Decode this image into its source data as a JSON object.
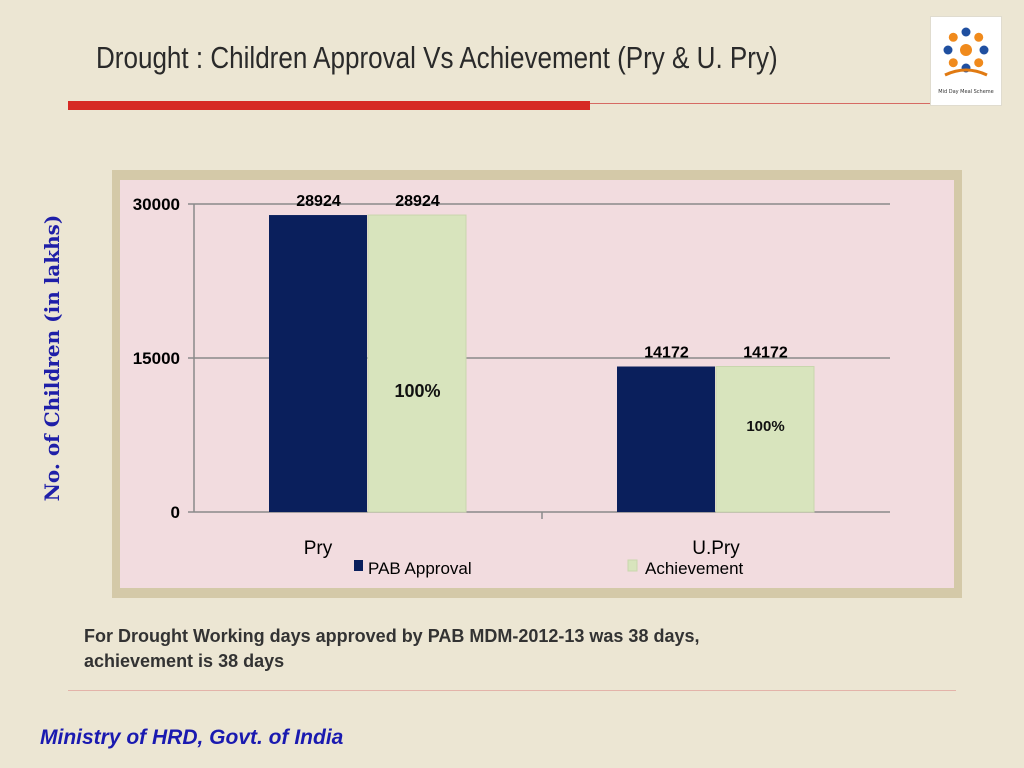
{
  "slide": {
    "title": "Drought  : Children Approval Vs Achievement (Pry & U. Pry)",
    "caption_line1": "For Drought Working days approved by PAB MDM-2012-13 was 38 days,",
    "caption_line2": "achievement is 38 days",
    "footer": "Ministry of HRD, Govt. of India",
    "logo_icon": "mid-day-meal-logo-icon",
    "logo_caption": "Mid Day Meal Scheme"
  },
  "chart_data": {
    "type": "bar",
    "title": "",
    "ylabel": "No. of Children (in lakhs)",
    "xlabel": "",
    "categories": [
      "Pry",
      "U.Pry"
    ],
    "series": [
      {
        "name": "PAB Approval",
        "values": [
          28924,
          14172
        ],
        "color": "#0a1f5c"
      },
      {
        "name": "Achievement",
        "values": [
          28924,
          14172
        ],
        "color": "#d8e4bd"
      }
    ],
    "yticks": [
      0,
      15000,
      30000
    ],
    "ylim": [
      0,
      30000
    ],
    "annotations": [
      "100%",
      "100%"
    ],
    "grid": true,
    "legend": "bottom"
  }
}
